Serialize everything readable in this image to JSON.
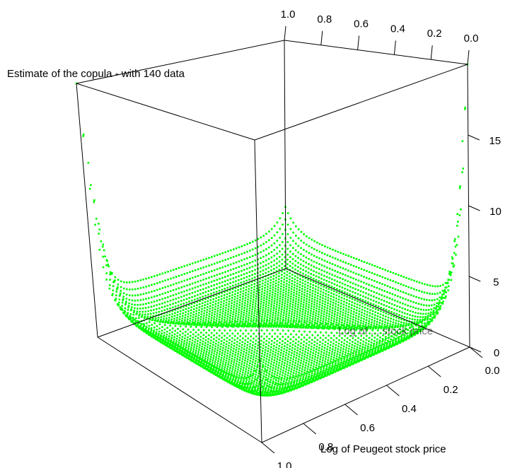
{
  "chart_data": {
    "type": "scatter",
    "projection": "3d-perspective",
    "title": "Estimate of the copula - with 140 data",
    "xlabel": "Log of Peugeot stock price",
    "ylabel": "Log of ... stock price",
    "zlabel": "",
    "x_ticks": [
      "0.0",
      "0.2",
      "0.4",
      "0.6",
      "0.8",
      "1.0"
    ],
    "y_ticks": [
      "0.0",
      "0.2",
      "0.4",
      "0.6",
      "0.8",
      "1.0"
    ],
    "z_ticks": [
      "0",
      "5",
      "10",
      "15"
    ],
    "xlim": [
      0,
      1
    ],
    "ylim": [
      0,
      1
    ],
    "zlim": [
      0,
      20
    ],
    "point_color": "#00ff00",
    "grid_resolution": 70,
    "surface_description": "Copula density estimate: roughly flat near 1 in the interior, rising at edges, with high peaks at corners (0,0) and (1,1) reaching ~19.",
    "corner_peaks": [
      {
        "x": 0.0,
        "y": 0.0,
        "z": 19.0
      },
      {
        "x": 1.0,
        "y": 1.0,
        "z": 17.5
      }
    ],
    "grid": false,
    "legend": "none"
  }
}
